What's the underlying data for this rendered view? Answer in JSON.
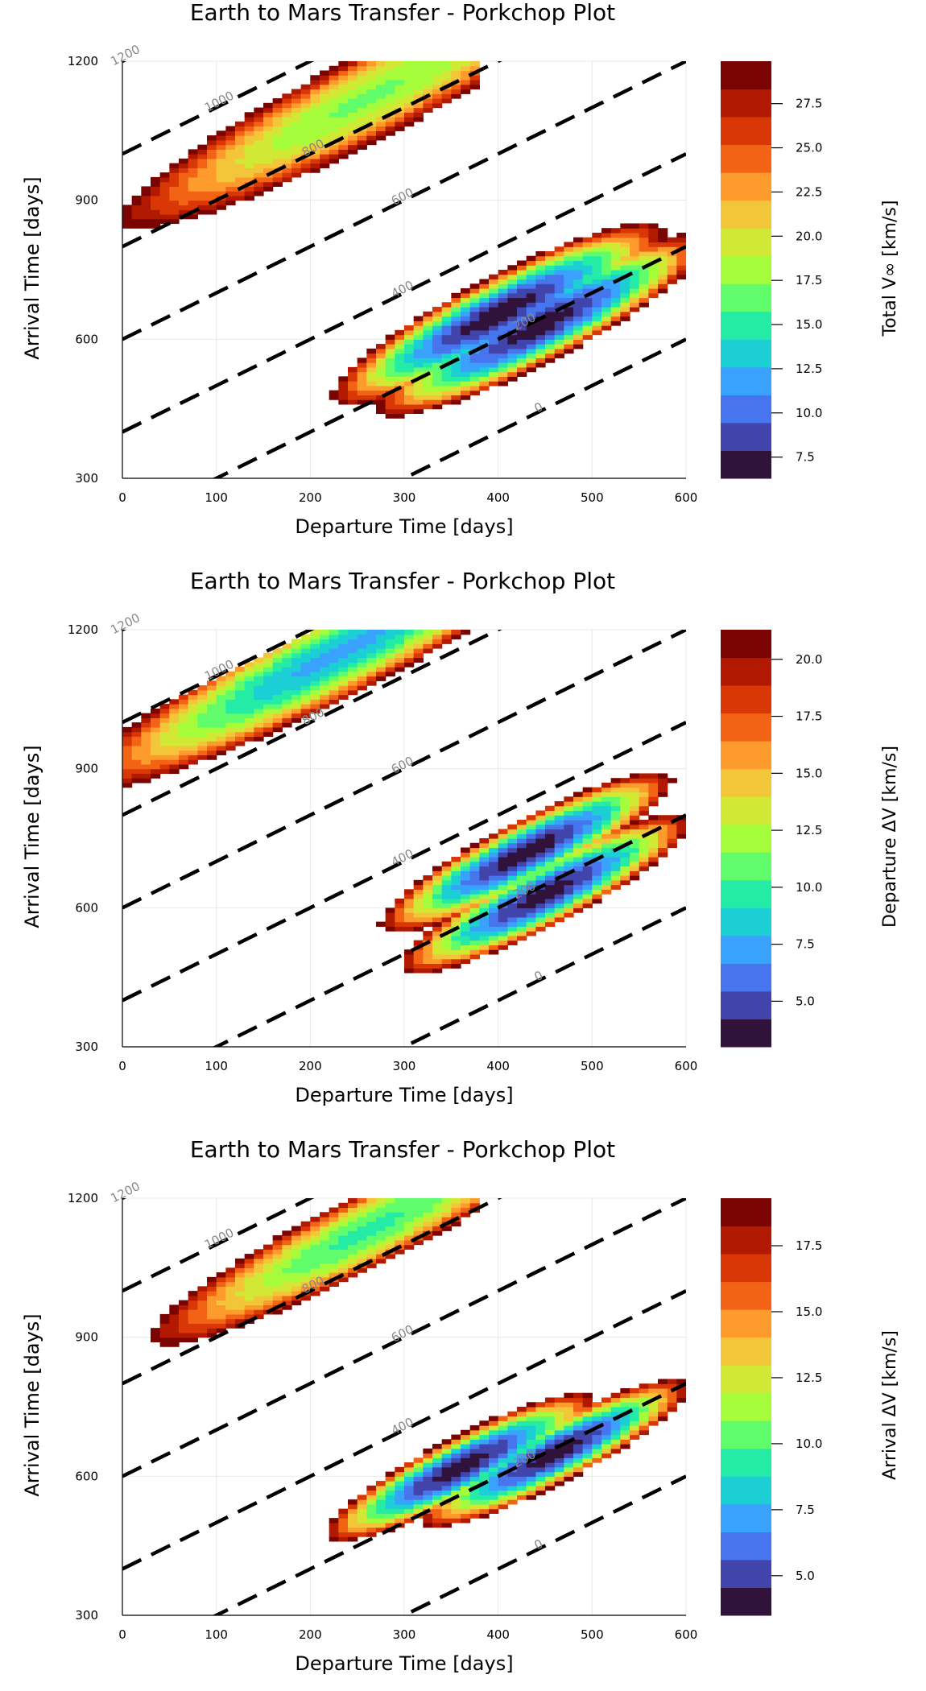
{
  "figure": {
    "title": "Earth to Mars Transfer - Porkchop Plot"
  },
  "chart_data": [
    {
      "type": "heatmap",
      "title": "Earth to Mars Transfer - Porkchop Plot",
      "xlabel": "Departure Time [days]",
      "ylabel": "Arrival Time [days]",
      "colorbar_label": "Total V∞ [km/s]",
      "xlim": [
        0,
        600
      ],
      "ylim": [
        300,
        1200
      ],
      "x_ticks": [
        0,
        100,
        200,
        300,
        400,
        500,
        600
      ],
      "y_ticks": [
        300,
        600,
        900,
        1200
      ],
      "clim": [
        6.3,
        29.9
      ],
      "colorbar_ticks": [
        7.5,
        10.0,
        12.5,
        15.0,
        17.5,
        20.0,
        22.5,
        25.0,
        27.5
      ],
      "colorbar_tick_labels": [
        "7.5",
        "10.0",
        "12.5",
        "15.0",
        "17.5",
        "20.0",
        "22.5",
        "25.0",
        "27.5"
      ],
      "minima": [
        {
          "x": 400,
          "y": 655,
          "value": 6.8
        },
        {
          "x": 445,
          "y": 630,
          "value": 7.0
        },
        {
          "x": 260,
          "y": 1120,
          "value": 17.0
        }
      ],
      "grid": true
    },
    {
      "type": "heatmap",
      "title": "Earth to Mars Transfer - Porkchop Plot",
      "xlabel": "Departure Time [days]",
      "ylabel": "Arrival Time [days]",
      "colorbar_label": "Departure ΔV [km/s]",
      "xlim": [
        0,
        600
      ],
      "ylim": [
        300,
        1200
      ],
      "x_ticks": [
        0,
        100,
        200,
        300,
        400,
        500,
        600
      ],
      "y_ticks": [
        300,
        600,
        900,
        1200
      ],
      "clim": [
        3.0,
        21.3
      ],
      "colorbar_ticks": [
        5.0,
        7.5,
        10.0,
        12.5,
        15.0,
        17.5,
        20.0
      ],
      "colorbar_tick_labels": [
        "5.0",
        "7.5",
        "10.0",
        "12.5",
        "15.0",
        "17.5",
        "20.0"
      ],
      "minima": [
        {
          "x": 430,
          "y": 720,
          "value": 3.4
        },
        {
          "x": 450,
          "y": 630,
          "value": 3.6
        },
        {
          "x": 230,
          "y": 1150,
          "value": 7.5
        }
      ],
      "grid": true
    },
    {
      "type": "heatmap",
      "title": "Earth to Mars Transfer - Porkchop Plot",
      "xlabel": "Departure Time [days]",
      "ylabel": "Arrival Time [days]",
      "colorbar_label": "Arrival ΔV [km/s]",
      "xlim": [
        0,
        600
      ],
      "ylim": [
        300,
        1200
      ],
      "x_ticks": [
        0,
        100,
        200,
        300,
        400,
        500,
        600
      ],
      "y_ticks": [
        300,
        600,
        900,
        1200
      ],
      "clim": [
        3.5,
        19.3
      ],
      "colorbar_ticks": [
        5.0,
        7.5,
        10.0,
        12.5,
        15.0,
        17.5
      ],
      "colorbar_tick_labels": [
        "5.0",
        "7.5",
        "10.0",
        "12.5",
        "15.0",
        "17.5"
      ],
      "minima": [
        {
          "x": 360,
          "y": 620,
          "value": 3.8
        },
        {
          "x": 460,
          "y": 650,
          "value": 3.9
        },
        {
          "x": 260,
          "y": 1130,
          "value": 9.5
        }
      ],
      "grid": true
    }
  ],
  "tof_lines": {
    "style": "dashed",
    "labels": [
      {
        "tof": 1200,
        "text": "1200",
        "x": 5
      },
      {
        "tof": 1000,
        "text": "1000",
        "x": 105
      },
      {
        "tof": 800,
        "text": "800",
        "x": 205
      },
      {
        "tof": 600,
        "text": "600",
        "x": 300
      },
      {
        "tof": 400,
        "text": "400",
        "x": 300
      },
      {
        "tof": 200,
        "text": "200",
        "x": 430
      },
      {
        "tof": 0,
        "text": "0",
        "x": 445
      }
    ],
    "lines": [
      1200,
      1000,
      800,
      600,
      400,
      200,
      0
    ]
  },
  "colormap": [
    "#30123b",
    "#4145ab",
    "#4675ed",
    "#39a2fc",
    "#1bcfd4",
    "#24eca6",
    "#61fc6c",
    "#a4fc3b",
    "#d1e834",
    "#f3c63a",
    "#fe9b2d",
    "#f36315",
    "#d93806",
    "#b11901",
    "#7a0402"
  ]
}
